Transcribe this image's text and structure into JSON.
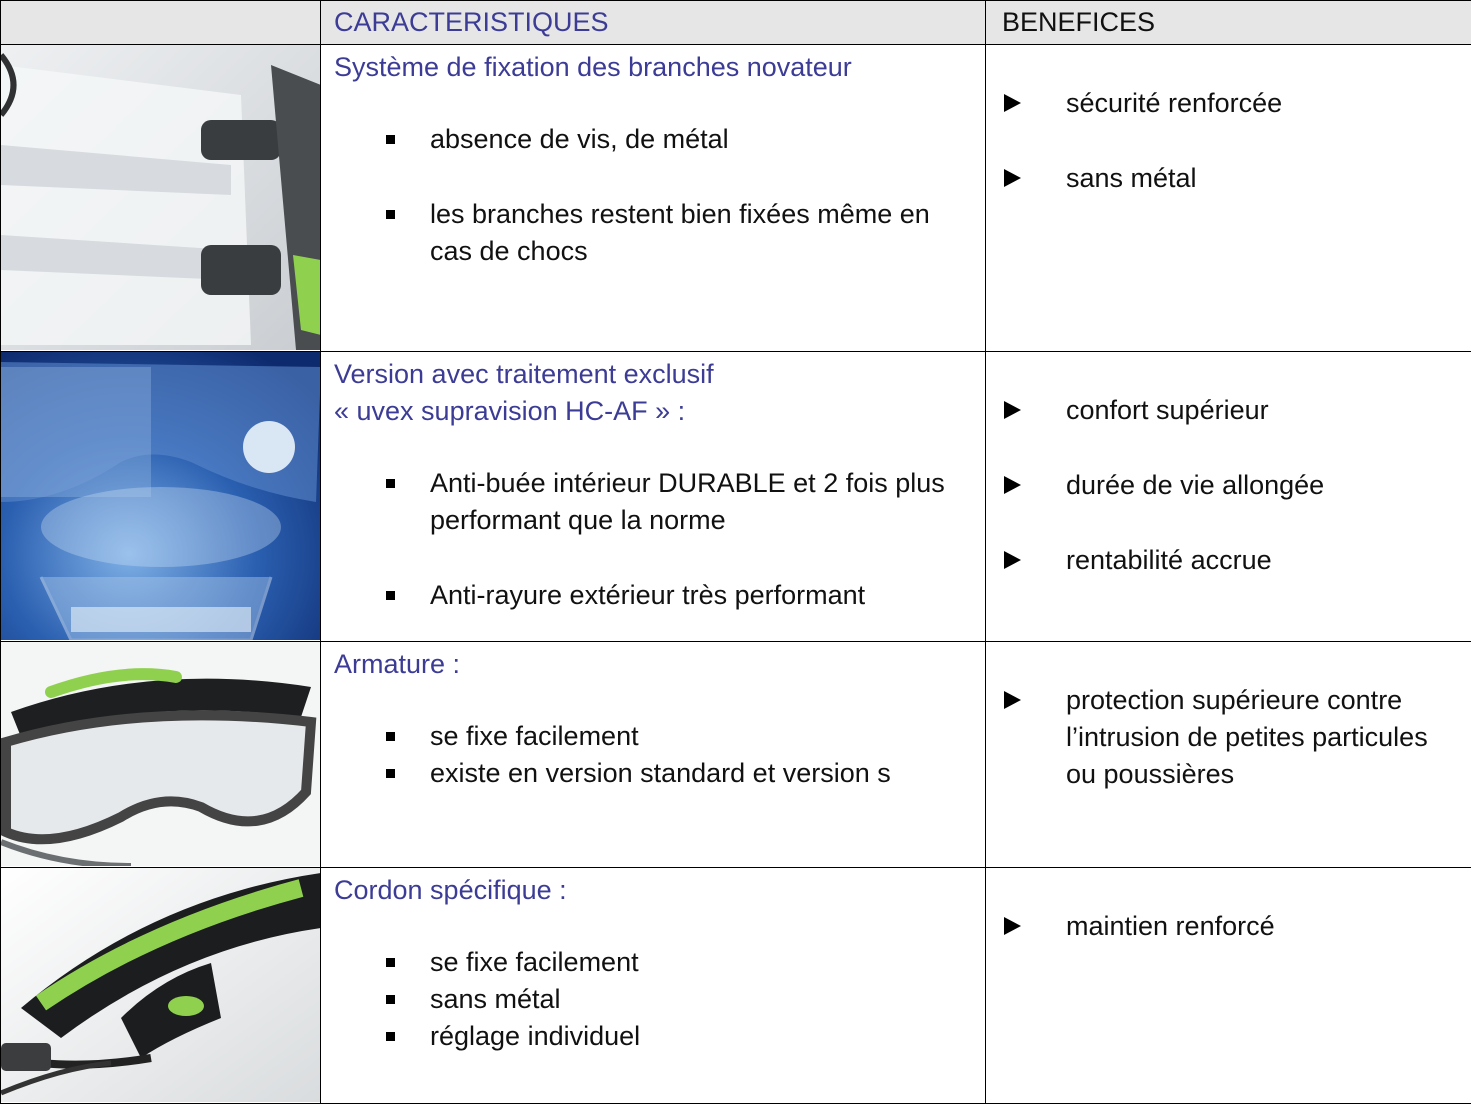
{
  "header": {
    "characteristics": "CARACTERISTIQUES",
    "benefits": "BENEFICES"
  },
  "rows": [
    {
      "title": [
        "Système de fixation des branches novateur"
      ],
      "bullets": [
        "absence de vis, de métal",
        "les branches restent bien fixées même en cas de chocs"
      ],
      "benefits": [
        "sécurité renforcée",
        "sans métal"
      ]
    },
    {
      "title": [
        "Version avec traitement exclusif",
        "« uvex supravision HC-AF » :"
      ],
      "bullets": [
        "Anti-buée intérieur DURABLE et 2 fois plus performant que la norme",
        "Anti-rayure extérieur très performant"
      ],
      "benefits": [
        "confort supérieur",
        "durée de vie allongée",
        "rentabilité accrue"
      ]
    },
    {
      "title": [
        "Armature  :"
      ],
      "bullets": [
        "se fixe facilement",
        "existe en version standard et version s"
      ],
      "benefits": [
        "protection supérieure contre l’intrusion de petites particules ou poussières"
      ]
    },
    {
      "title": [
        "Cordon spécifique :"
      ],
      "bullets": [
        "se fixe facilement",
        "sans métal",
        "réglage individuel"
      ],
      "benefits": [
        "maintien renforcé"
      ]
    }
  ]
}
